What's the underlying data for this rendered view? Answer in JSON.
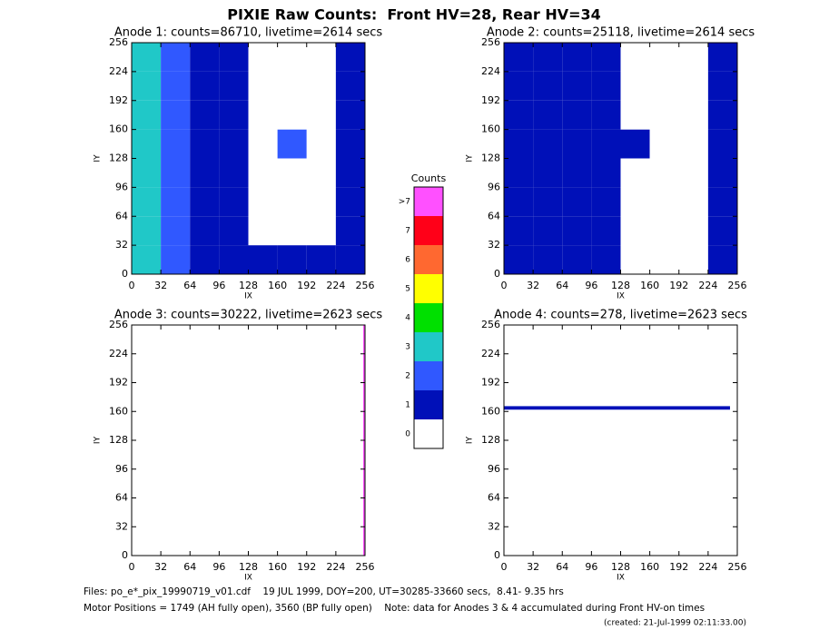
{
  "title": "PIXIE Raw Counts:  Front HV=28, Rear HV=34",
  "chart_data": [
    {
      "type": "heatmap",
      "title": "Anode 1: counts=86710, livetime=2614 secs",
      "xlabel": "IX",
      "ylabel": "IY",
      "xlim": [
        0,
        256
      ],
      "ylim": [
        0,
        256
      ],
      "xticks": [
        0,
        32,
        64,
        96,
        128,
        160,
        192,
        224,
        256
      ],
      "yticks": [
        0,
        32,
        64,
        96,
        128,
        160,
        192,
        224,
        256
      ],
      "x_edges": [
        0,
        32,
        64,
        96,
        128,
        160,
        192,
        224,
        256
      ],
      "y_edges": [
        0,
        32,
        64,
        96,
        128,
        160,
        192,
        224,
        256
      ],
      "levels": [
        [
          3,
          2,
          1,
          1,
          1,
          1,
          1,
          1
        ],
        [
          3,
          2,
          1,
          1,
          0,
          0,
          0,
          1
        ],
        [
          3,
          2,
          1,
          1,
          0,
          0,
          0,
          1
        ],
        [
          3,
          2,
          1,
          1,
          0,
          0,
          0,
          1
        ],
        [
          3,
          2,
          1,
          1,
          0,
          2,
          0,
          1
        ],
        [
          3,
          2,
          1,
          1,
          0,
          0,
          0,
          1
        ],
        [
          3,
          2,
          1,
          1,
          0,
          0,
          0,
          1
        ],
        [
          3,
          2,
          1,
          1,
          0,
          0,
          0,
          1
        ]
      ]
    },
    {
      "type": "heatmap",
      "title": "Anode 2: counts=25118, livetime=2614 secs",
      "xlabel": "IX",
      "ylabel": "IY",
      "xlim": [
        0,
        256
      ],
      "ylim": [
        0,
        256
      ],
      "xticks": [
        0,
        32,
        64,
        96,
        128,
        160,
        192,
        224,
        256
      ],
      "yticks": [
        0,
        32,
        64,
        96,
        128,
        160,
        192,
        224,
        256
      ],
      "x_edges": [
        0,
        32,
        64,
        96,
        128,
        160,
        192,
        224,
        256
      ],
      "y_edges": [
        0,
        32,
        64,
        96,
        128,
        160,
        192,
        224,
        256
      ],
      "levels": [
        [
          1,
          1,
          1,
          1,
          0,
          0,
          0,
          1
        ],
        [
          1,
          1,
          1,
          1,
          0,
          0,
          0,
          1
        ],
        [
          1,
          1,
          1,
          1,
          0,
          0,
          0,
          1
        ],
        [
          1,
          1,
          1,
          1,
          0,
          0,
          0,
          1
        ],
        [
          1,
          1,
          1,
          1,
          1,
          0,
          0,
          1
        ],
        [
          1,
          1,
          1,
          1,
          0,
          0,
          0,
          1
        ],
        [
          1,
          1,
          1,
          1,
          0,
          0,
          0,
          1
        ],
        [
          1,
          1,
          1,
          1,
          0,
          0,
          0,
          1
        ]
      ]
    },
    {
      "type": "heatmap",
      "title": "Anode 3: counts=30222, livetime=2623 secs",
      "xlabel": "IX",
      "ylabel": "IY",
      "xlim": [
        0,
        256
      ],
      "ylim": [
        0,
        256
      ],
      "xticks": [
        0,
        32,
        64,
        96,
        128,
        160,
        192,
        224,
        256
      ],
      "yticks": [
        0,
        32,
        64,
        96,
        128,
        160,
        192,
        224,
        256
      ],
      "x_edges": [
        0,
        254,
        256
      ],
      "y_edges": [
        0,
        256
      ],
      "levels": [
        [
          0,
          8
        ]
      ]
    },
    {
      "type": "heatmap",
      "title": "Anode 4: counts=278, livetime=2623 secs",
      "xlabel": "IX",
      "ylabel": "IY",
      "xlim": [
        0,
        256
      ],
      "ylim": [
        0,
        256
      ],
      "xticks": [
        0,
        32,
        64,
        96,
        128,
        160,
        192,
        224,
        256
      ],
      "yticks": [
        0,
        32,
        64,
        96,
        128,
        160,
        192,
        224,
        256
      ],
      "x_edges": [
        0,
        248
      ],
      "y_edges": [
        0,
        162,
        166,
        256
      ],
      "levels": [
        [
          0
        ],
        [
          1
        ],
        [
          0
        ]
      ]
    }
  ],
  "colorbar": {
    "title": "Counts",
    "labels": [
      "0",
      "1",
      "2",
      "3",
      "4",
      "5",
      "6",
      "7",
      ">7"
    ],
    "colors": [
      "#ffffff",
      "#0010b8",
      "#3058ff",
      "#20c8c8",
      "#00e000",
      "#ffff00",
      "#ff6830",
      "#ff0018",
      "#ff50ff"
    ]
  },
  "footer": [
    "Files: po_e*_pix_19990719_v01.cdf    19 JUL 1999, DOY=200, UT=30285-33660 secs,  8.41- 9.35 hrs",
    "Motor Positions = 1749 (AH fully open), 3560 (BP fully open)    Note: data for Anodes 3 & 4 accumulated during Front HV-on times",
    "(created: 21-Jul-1999 02:11:33.00)"
  ]
}
